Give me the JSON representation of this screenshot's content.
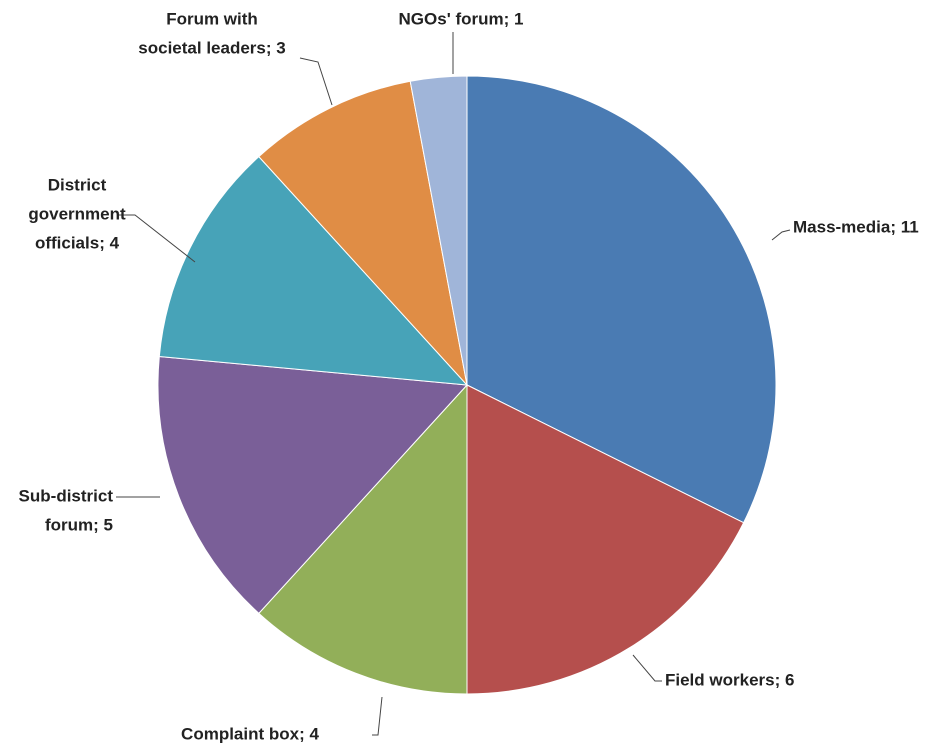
{
  "chart_data": {
    "type": "pie",
    "values": [
      11,
      6,
      4,
      5,
      4,
      3,
      1
    ],
    "value_labels": [
      [
        "Mass-media; 11"
      ],
      [
        "Field workers; 6"
      ],
      [
        "Complaint box; 4"
      ],
      [
        "Sub-district",
        "forum; 5"
      ],
      [
        "District",
        "government",
        "officials; 4"
      ],
      [
        "Forum with",
        "societal leaders; 3"
      ],
      [
        "NGOs' forum; 1"
      ]
    ],
    "colors": [
      "#4a7bb3",
      "#b54f4d",
      "#92af59",
      "#7a5f98",
      "#47a3b8",
      "#e08d45",
      "#a0b5d9"
    ]
  }
}
